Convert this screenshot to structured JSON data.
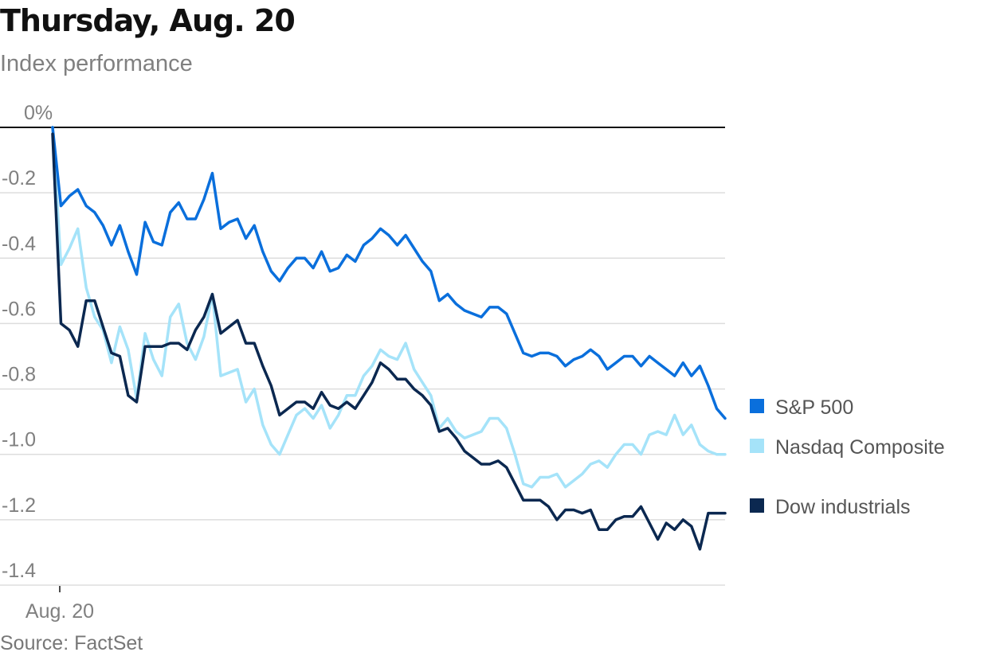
{
  "title": "Thursday, Aug. 20",
  "subtitle": "Index performance",
  "source": "Source: FactSet",
  "colors": {
    "sp500": "#0a6fdc",
    "nasdaq": "#a5e3f9",
    "dow": "#0b2850",
    "gridline": "#dddddd",
    "baseline": "#111111",
    "text_muted": "#808080"
  },
  "chart_data": {
    "type": "line",
    "title": "Thursday, Aug. 20",
    "subtitle": "Index performance",
    "xlabel": "",
    "ylabel": "",
    "ylim": [
      -1.4,
      0
    ],
    "xlim": [
      0,
      84
    ],
    "grid": true,
    "legend_placement": "right",
    "y_ticks": [
      {
        "value": 0,
        "label": "0%"
      },
      {
        "value": -0.2,
        "label": "-0.2"
      },
      {
        "value": -0.4,
        "label": "-0.4"
      },
      {
        "value": -0.6,
        "label": "-0.6"
      },
      {
        "value": -0.8,
        "label": "-0.8"
      },
      {
        "value": -1.0,
        "label": "-1.0"
      },
      {
        "value": -1.2,
        "label": "-1.2"
      },
      {
        "value": -1.4,
        "label": "-1.4"
      }
    ],
    "x_ticks": [
      {
        "value": 1,
        "label": "Aug. 20"
      }
    ],
    "series": [
      {
        "name": "S&P 500",
        "color": "#0a6fdc",
        "values": [
          0,
          -0.24,
          -0.21,
          -0.19,
          -0.24,
          -0.26,
          -0.3,
          -0.36,
          -0.3,
          -0.38,
          -0.45,
          -0.29,
          -0.35,
          -0.36,
          -0.26,
          -0.23,
          -0.28,
          -0.28,
          -0.22,
          -0.14,
          -0.31,
          -0.29,
          -0.28,
          -0.34,
          -0.3,
          -0.38,
          -0.44,
          -0.47,
          -0.43,
          -0.4,
          -0.4,
          -0.43,
          -0.38,
          -0.44,
          -0.43,
          -0.39,
          -0.41,
          -0.36,
          -0.34,
          -0.31,
          -0.33,
          -0.36,
          -0.33,
          -0.37,
          -0.41,
          -0.44,
          -0.53,
          -0.51,
          -0.54,
          -0.56,
          -0.57,
          -0.58,
          -0.55,
          -0.55,
          -0.57,
          -0.63,
          -0.69,
          -0.7,
          -0.69,
          -0.69,
          -0.7,
          -0.73,
          -0.71,
          -0.7,
          -0.68,
          -0.7,
          -0.74,
          -0.72,
          -0.7,
          -0.7,
          -0.73,
          -0.7,
          -0.72,
          -0.74,
          -0.76,
          -0.72,
          -0.76,
          -0.73,
          -0.79,
          -0.86,
          -0.89
        ]
      },
      {
        "name": "Nasdaq Composite",
        "color": "#a5e3f9",
        "values": [
          0,
          -0.42,
          -0.37,
          -0.31,
          -0.49,
          -0.58,
          -0.62,
          -0.72,
          -0.61,
          -0.68,
          -0.83,
          -0.63,
          -0.71,
          -0.76,
          -0.58,
          -0.54,
          -0.66,
          -0.71,
          -0.64,
          -0.51,
          -0.76,
          -0.75,
          -0.74,
          -0.84,
          -0.8,
          -0.91,
          -0.97,
          -1.0,
          -0.94,
          -0.88,
          -0.86,
          -0.89,
          -0.85,
          -0.92,
          -0.88,
          -0.82,
          -0.82,
          -0.76,
          -0.73,
          -0.68,
          -0.7,
          -0.71,
          -0.66,
          -0.74,
          -0.78,
          -0.82,
          -0.92,
          -0.89,
          -0.93,
          -0.95,
          -0.94,
          -0.93,
          -0.89,
          -0.89,
          -0.92,
          -1.0,
          -1.09,
          -1.1,
          -1.07,
          -1.07,
          -1.06,
          -1.1,
          -1.08,
          -1.06,
          -1.03,
          -1.02,
          -1.04,
          -1.0,
          -0.97,
          -0.97,
          -1.0,
          -0.94,
          -0.93,
          -0.94,
          -0.88,
          -0.94,
          -0.91,
          -0.97,
          -0.99,
          -1.0,
          -1.0
        ]
      },
      {
        "name": "Dow industrials",
        "color": "#0b2850",
        "values": [
          -0.02,
          -0.6,
          -0.62,
          -0.67,
          -0.53,
          -0.53,
          -0.61,
          -0.69,
          -0.7,
          -0.82,
          -0.84,
          -0.67,
          -0.67,
          -0.67,
          -0.66,
          -0.66,
          -0.68,
          -0.62,
          -0.58,
          -0.51,
          -0.63,
          -0.61,
          -0.59,
          -0.66,
          -0.66,
          -0.73,
          -0.79,
          -0.88,
          -0.86,
          -0.84,
          -0.84,
          -0.86,
          -0.81,
          -0.85,
          -0.86,
          -0.84,
          -0.86,
          -0.82,
          -0.78,
          -0.72,
          -0.74,
          -0.77,
          -0.77,
          -0.8,
          -0.82,
          -0.85,
          -0.93,
          -0.92,
          -0.95,
          -0.99,
          -1.01,
          -1.03,
          -1.03,
          -1.02,
          -1.04,
          -1.09,
          -1.14,
          -1.14,
          -1.14,
          -1.16,
          -1.2,
          -1.17,
          -1.17,
          -1.18,
          -1.17,
          -1.23,
          -1.23,
          -1.2,
          -1.19,
          -1.19,
          -1.16,
          -1.21,
          -1.26,
          -1.21,
          -1.23,
          -1.2,
          -1.22,
          -1.29,
          -1.18,
          -1.18,
          -1.18
        ]
      }
    ]
  }
}
